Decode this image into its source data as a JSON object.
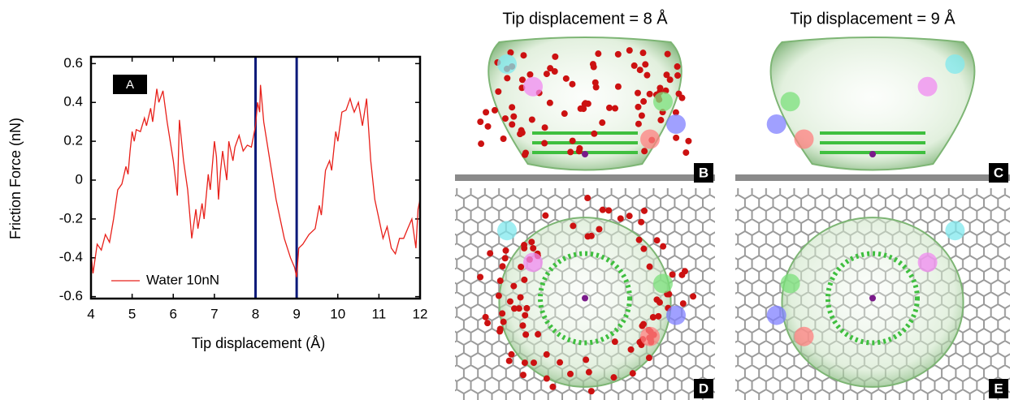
{
  "chart_data": {
    "type": "line",
    "panel_label": "A",
    "x_label": "Tip displacement (Å)",
    "y_label": "Friction Force (nN)",
    "x": [
      4.0,
      4.05,
      4.15,
      4.25,
      4.35,
      4.45,
      4.55,
      4.65,
      4.75,
      4.85,
      4.9,
      4.95,
      5.0,
      5.05,
      5.1,
      5.2,
      5.3,
      5.35,
      5.45,
      5.5,
      5.6,
      5.65,
      5.75,
      5.85,
      6.0,
      6.1,
      6.15,
      6.25,
      6.35,
      6.45,
      6.55,
      6.6,
      6.7,
      6.75,
      6.85,
      6.9,
      7.0,
      7.05,
      7.1,
      7.15,
      7.2,
      7.3,
      7.35,
      7.45,
      7.5,
      7.6,
      7.7,
      7.8,
      7.9,
      8.0,
      8.05,
      8.1,
      8.12,
      8.2,
      8.35,
      8.5,
      8.7,
      8.85,
      8.95,
      9.0,
      9.05,
      9.15,
      9.3,
      9.45,
      9.55,
      9.6,
      9.7,
      9.8,
      9.85,
      9.95,
      10.0,
      10.1,
      10.2,
      10.3,
      10.35,
      10.4,
      10.5,
      10.6,
      10.7,
      10.8,
      10.9,
      11.0,
      11.1,
      11.2,
      11.3,
      11.4,
      11.5,
      11.6,
      11.7,
      11.8,
      11.9,
      11.95,
      12.0
    ],
    "series": [
      {
        "name": "Water  10nN",
        "color": "#e8201a",
        "values": [
          -0.38,
          -0.48,
          -0.33,
          -0.36,
          -0.28,
          -0.32,
          -0.2,
          -0.05,
          -0.02,
          0.07,
          0.03,
          0.15,
          0.25,
          0.2,
          0.26,
          0.25,
          0.32,
          0.28,
          0.37,
          0.3,
          0.47,
          0.4,
          0.46,
          0.3,
          0.1,
          -0.08,
          0.31,
          0.1,
          -0.05,
          -0.3,
          -0.15,
          -0.25,
          -0.12,
          -0.2,
          0.03,
          -0.05,
          0.2,
          0.12,
          -0.1,
          0.05,
          0.15,
          0.0,
          0.2,
          0.1,
          0.17,
          0.23,
          0.15,
          0.18,
          0.17,
          0.28,
          0.4,
          0.35,
          0.49,
          0.3,
          0.1,
          -0.1,
          -0.3,
          -0.4,
          -0.45,
          -0.5,
          -0.35,
          -0.33,
          -0.28,
          -0.25,
          -0.13,
          -0.18,
          0.05,
          0.1,
          0.05,
          0.25,
          0.2,
          0.35,
          0.36,
          0.42,
          0.38,
          0.35,
          0.4,
          0.28,
          0.42,
          0.1,
          -0.1,
          -0.2,
          -0.3,
          -0.24,
          -0.35,
          -0.38,
          -0.3,
          -0.3,
          -0.25,
          -0.2,
          -0.35,
          -0.15,
          -0.1
        ]
      }
    ],
    "vlines": [
      8,
      9
    ],
    "vline_color": "#0a1a7a",
    "xlim": [
      4,
      12
    ],
    "xticks": [
      4,
      5,
      6,
      7,
      8,
      9,
      10,
      11,
      12
    ],
    "ylim": [
      -0.61,
      0.635
    ],
    "yticks": [
      -0.6,
      -0.4,
      -0.2,
      0,
      0.2,
      0.4,
      0.6
    ],
    "legend": "lower left"
  },
  "panels": [
    {
      "title": "Tip displacement = 8 Å",
      "label": "B"
    },
    {
      "title": "Tip displacement = 9 Å",
      "label": "C"
    },
    {
      "label": "D"
    },
    {
      "label": "E"
    }
  ]
}
